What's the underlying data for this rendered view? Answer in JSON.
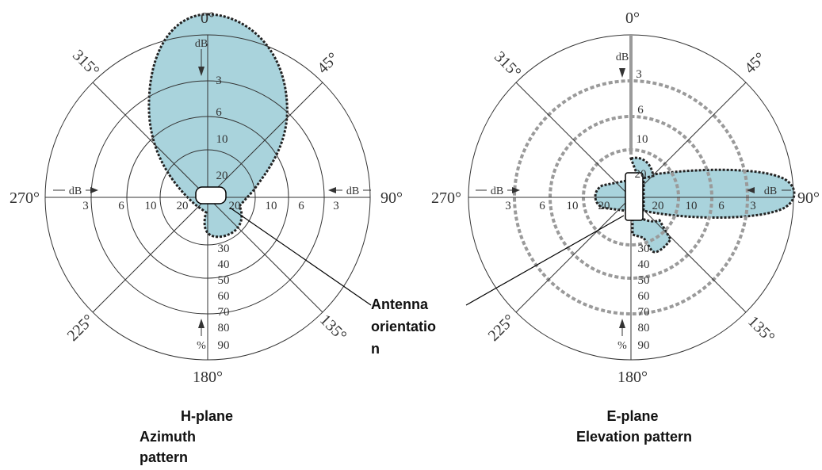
{
  "chart_data": [
    {
      "type": "polar",
      "caption_lines": [
        "H-plane",
        "Azimuth",
        "pattern"
      ],
      "angle_labels": [
        "0°",
        "45°",
        "90°",
        "135°",
        "180°",
        "225°",
        "270°",
        "315°"
      ],
      "ring_labels_db": [
        "3",
        "6",
        "10",
        "20"
      ],
      "scale_labels_percent": [
        "30",
        "40",
        "50",
        "60",
        "70",
        "80",
        "90"
      ],
      "unit_db": "dB",
      "unit_percent": "%",
      "pattern_db": [
        {
          "angle": 0,
          "db": 0
        },
        {
          "angle": 20,
          "db": 0.6
        },
        {
          "angle": 40,
          "db": 3
        },
        {
          "angle": 60,
          "db": 7
        },
        {
          "angle": 90,
          "db": 15
        },
        {
          "angle": 120,
          "db": 19
        },
        {
          "angle": 160,
          "db": 21
        },
        {
          "angle": 180,
          "db": 21
        },
        {
          "angle": 200,
          "db": 21
        },
        {
          "angle": 240,
          "db": 20
        },
        {
          "angle": 270,
          "db": 15
        },
        {
          "angle": 300,
          "db": 7
        },
        {
          "angle": 320,
          "db": 3
        },
        {
          "angle": 340,
          "db": 0.6
        }
      ]
    },
    {
      "type": "polar",
      "caption_lines": [
        "E-plane",
        "Elevation pattern"
      ],
      "angle_labels": [
        "0°",
        "45°",
        "90°",
        "135°",
        "180°",
        "225°",
        "270°",
        "315°"
      ],
      "ring_labels_db": [
        "3",
        "6",
        "10",
        "20"
      ],
      "scale_labels_percent": [
        "30",
        "40",
        "50",
        "60",
        "70",
        "80",
        "90"
      ],
      "unit_db": "dB",
      "unit_percent": "%",
      "pattern_db": [
        {
          "angle": 0,
          "db": 20
        },
        {
          "angle": 60,
          "db": 18
        },
        {
          "angle": 80,
          "db": 3
        },
        {
          "angle": 90,
          "db": 0
        },
        {
          "angle": 100,
          "db": 3
        },
        {
          "angle": 120,
          "db": 16
        },
        {
          "angle": 150,
          "db": 16
        },
        {
          "angle": 180,
          "db": 20
        },
        {
          "angle": 250,
          "db": 21
        },
        {
          "angle": 270,
          "db": 20
        },
        {
          "angle": 330,
          "db": 19
        }
      ]
    }
  ],
  "annotation": {
    "lines": [
      "Antenna",
      "orientatio",
      "n"
    ]
  },
  "colors": {
    "lobe_fill": "#a9d3dc",
    "lobe_edge": "#222222",
    "grid": "#333333",
    "elevation_ring": "#9a9a9a"
  }
}
